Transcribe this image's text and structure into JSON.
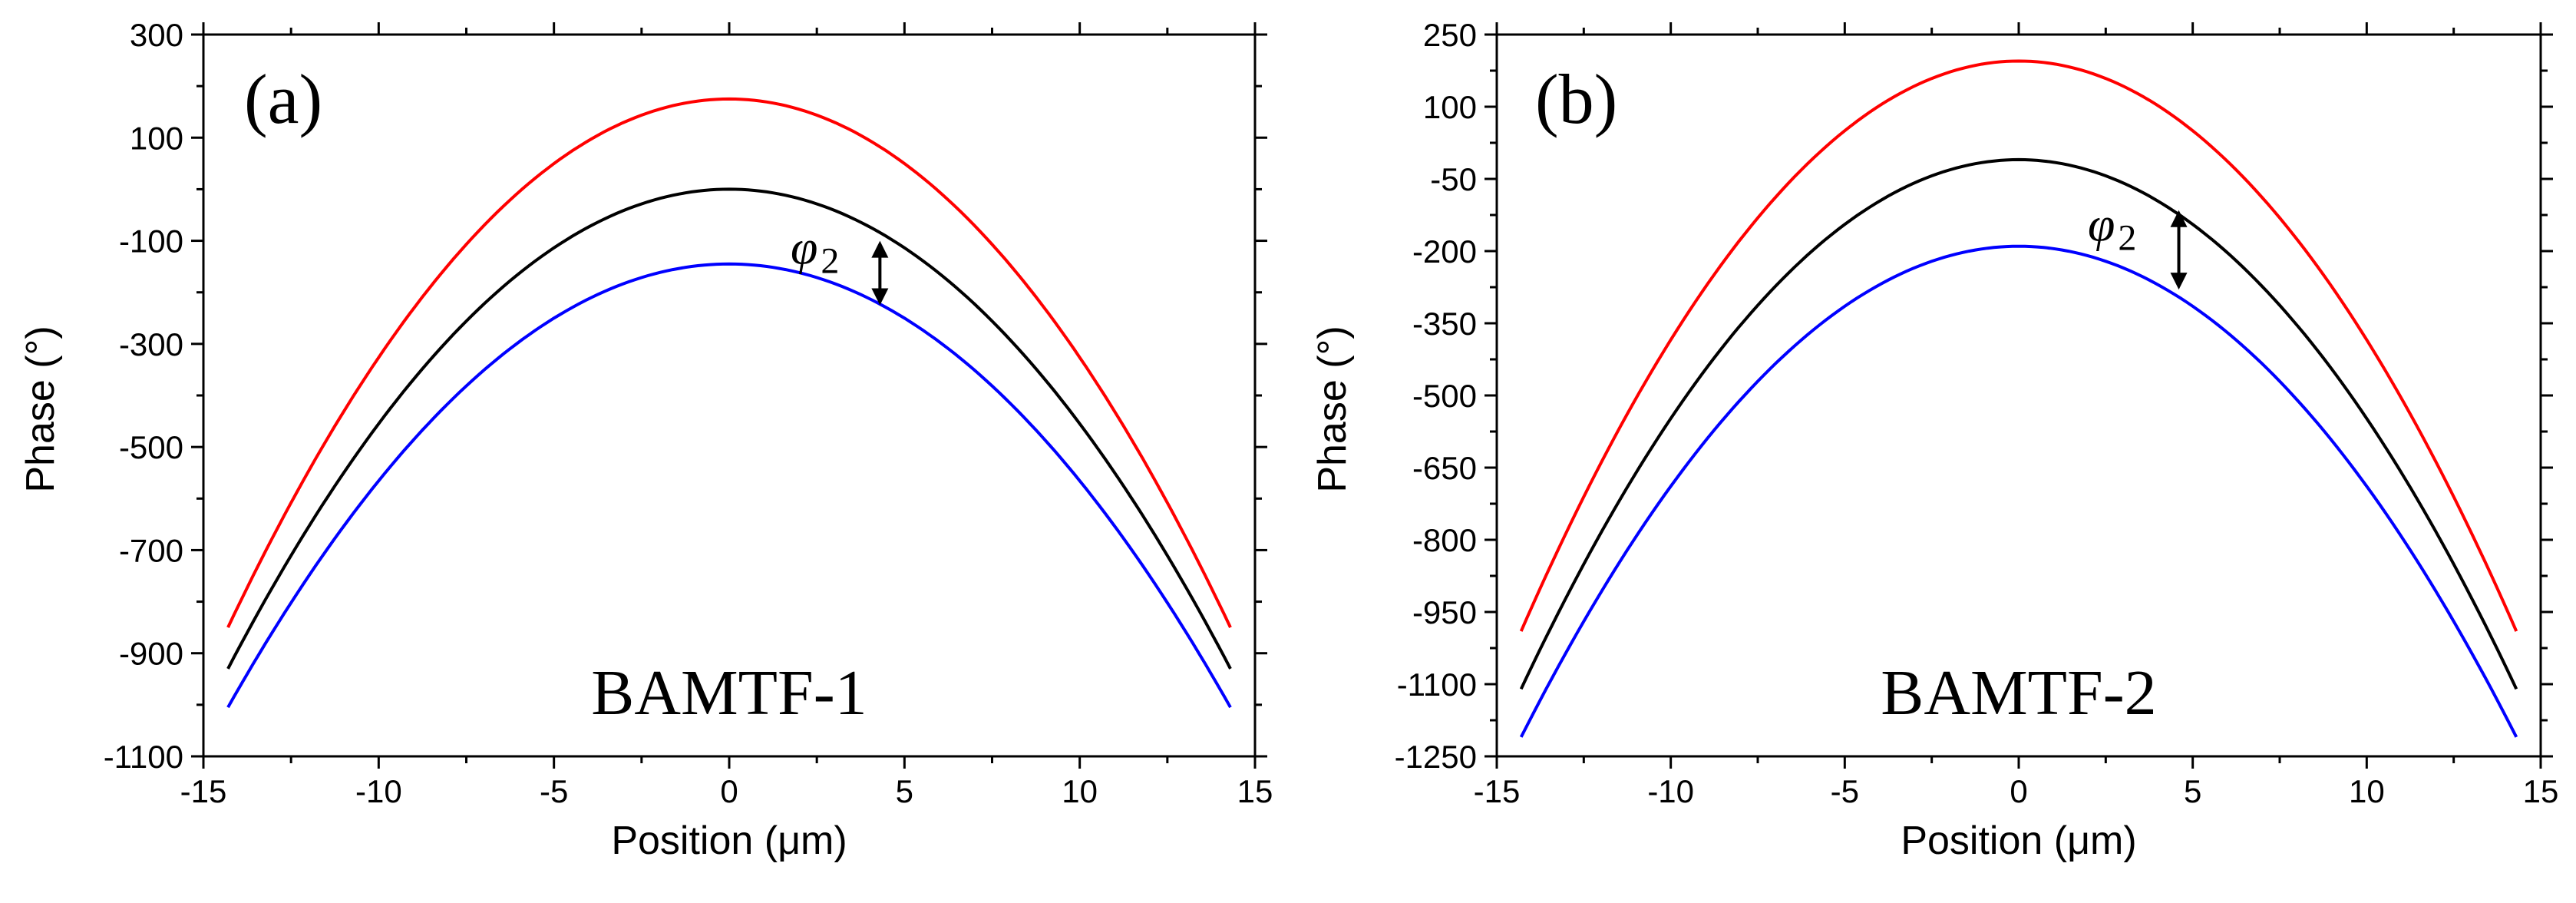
{
  "chart_data": [
    {
      "type": "line",
      "panel_label": "(a)",
      "sample_label": "BAMTF-1",
      "xlabel": "Position (μm)",
      "ylabel": "Phase (°)",
      "xlim": [
        -15,
        15
      ],
      "ylim": [
        -1100,
        300
      ],
      "x_ticks": [
        -15,
        -10,
        -5,
        0,
        5,
        10,
        15
      ],
      "y_ticks": [
        300,
        100,
        -100,
        -300,
        -500,
        -700,
        -900,
        -1100
      ],
      "y_tick_labels": [
        "300",
        "100",
        "-100",
        "-300",
        "-500",
        "-700",
        "-900",
        "-1100"
      ],
      "x_tick_labels": [
        "-15",
        "-10",
        "-5",
        "0",
        "5",
        "10",
        "15"
      ],
      "series": [
        {
          "name": "red",
          "color": "#ff0000",
          "x_range": [
            -14.3,
            14.3
          ],
          "peak": 175,
          "edge": -850
        },
        {
          "name": "black",
          "color": "#000000",
          "x_range": [
            -14.3,
            14.3
          ],
          "peak": 0,
          "edge": -930
        },
        {
          "name": "blue",
          "color": "#0000ff",
          "x_range": [
            -14.3,
            14.3
          ],
          "peak": -145,
          "edge": -1005
        }
      ],
      "annotation": {
        "symbol": "φ",
        "subscript": "2",
        "x": 4.3,
        "y_top": -100,
        "y_bottom": -225
      }
    },
    {
      "type": "line",
      "panel_label": "(b)",
      "sample_label": "BAMTF-2",
      "xlabel": "Position (μm)",
      "ylabel": "Phase (°)",
      "xlim": [
        -15,
        15
      ],
      "ylim": [
        -1250,
        250
      ],
      "x_ticks": [
        -15,
        -10,
        -5,
        0,
        5,
        10,
        15
      ],
      "y_ticks": [
        250,
        100,
        -50,
        -200,
        -350,
        -500,
        -650,
        -800,
        -950,
        -1100,
        -1250
      ],
      "y_tick_labels": [
        "250",
        "100",
        "-50",
        "-200",
        "-350",
        "-500",
        "-650",
        "-800",
        "-950",
        "-1100",
        "-1250"
      ],
      "x_tick_labels": [
        "-15",
        "-10",
        "-5",
        "0",
        "5",
        "10",
        "15"
      ],
      "series": [
        {
          "name": "red",
          "color": "#ff0000",
          "x_range": [
            -14.3,
            14.3
          ],
          "peak": 195,
          "edge": -990
        },
        {
          "name": "black",
          "color": "#000000",
          "x_range": [
            -14.3,
            14.3
          ],
          "peak": -10,
          "edge": -1110
        },
        {
          "name": "blue",
          "color": "#0000ff",
          "x_range": [
            -14.3,
            14.3
          ],
          "peak": -190,
          "edge": -1210
        }
      ],
      "annotation": {
        "symbol": "φ",
        "subscript": "2",
        "x": 4.6,
        "y_top": -115,
        "y_bottom": -280
      }
    }
  ]
}
